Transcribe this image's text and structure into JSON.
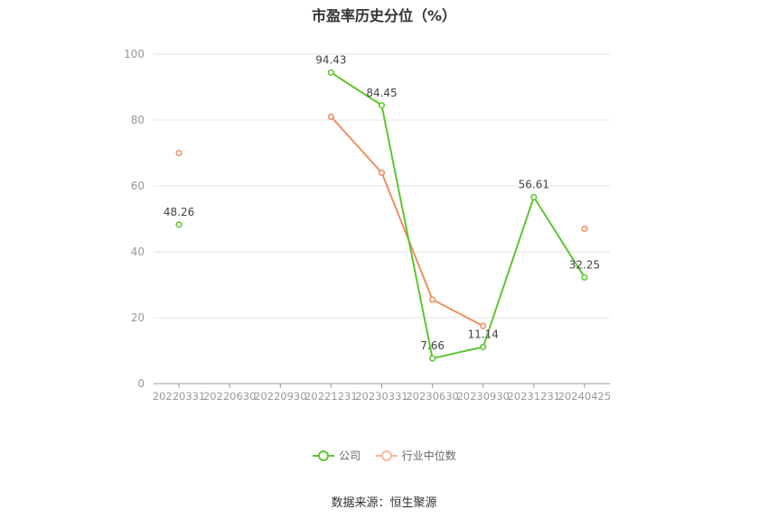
{
  "chart_data": {
    "type": "line",
    "title": "市盈率历史分位（%）",
    "categories": [
      "20220331",
      "20220630",
      "20220930",
      "20221231",
      "20230331",
      "20230630",
      "20230930",
      "20231231",
      "20240425"
    ],
    "ylim": [
      0,
      100
    ],
    "yticks": [
      0,
      20,
      40,
      60,
      80,
      100
    ],
    "grid": true,
    "legend_position": "bottom",
    "series": [
      {
        "name": "公司",
        "color": "#5cc72f",
        "values": [
          48.26,
          null,
          null,
          94.43,
          84.45,
          7.66,
          11.14,
          56.61,
          32.25
        ],
        "show_labels": true
      },
      {
        "name": "行业中位数",
        "color": "#f28e62",
        "values": [
          70,
          null,
          null,
          81,
          64,
          25.5,
          17.5,
          null,
          47
        ],
        "show_labels": false
      }
    ]
  },
  "source_text": "数据来源：恒生聚源"
}
